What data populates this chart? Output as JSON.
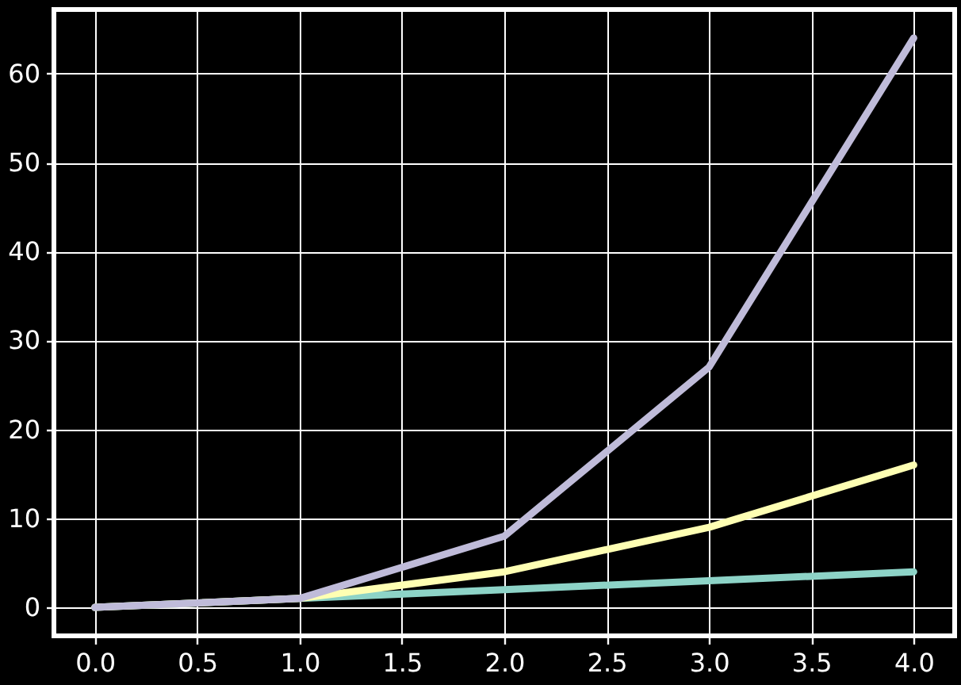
{
  "chart_data": {
    "type": "line",
    "x": [
      0,
      1,
      2,
      3,
      4
    ],
    "series": [
      {
        "color": "#8dd3c7",
        "values": [
          0,
          1,
          2,
          3,
          4
        ]
      },
      {
        "color": "#feffb3",
        "values": [
          0,
          1,
          4,
          9,
          16
        ]
      },
      {
        "color": "#bfbbd9",
        "values": [
          0,
          1,
          8,
          27,
          64
        ]
      }
    ],
    "xlim": [
      -0.2,
      4.2
    ],
    "ylim": [
      -3.2,
      67.2
    ],
    "xticks": [
      {
        "value": 0,
        "label": "0.0"
      },
      {
        "value": 0.5,
        "label": "0.5"
      },
      {
        "value": 1,
        "label": "1.0"
      },
      {
        "value": 1.5,
        "label": "1.5"
      },
      {
        "value": 2,
        "label": "2.0"
      },
      {
        "value": 2.5,
        "label": "2.5"
      },
      {
        "value": 3,
        "label": "3.0"
      },
      {
        "value": 3.5,
        "label": "3.5"
      },
      {
        "value": 4,
        "label": "4.0"
      }
    ],
    "yticks": [
      0,
      10,
      20,
      30,
      40,
      50,
      60
    ],
    "grid": true,
    "line_style": "solid",
    "marker": "none"
  }
}
